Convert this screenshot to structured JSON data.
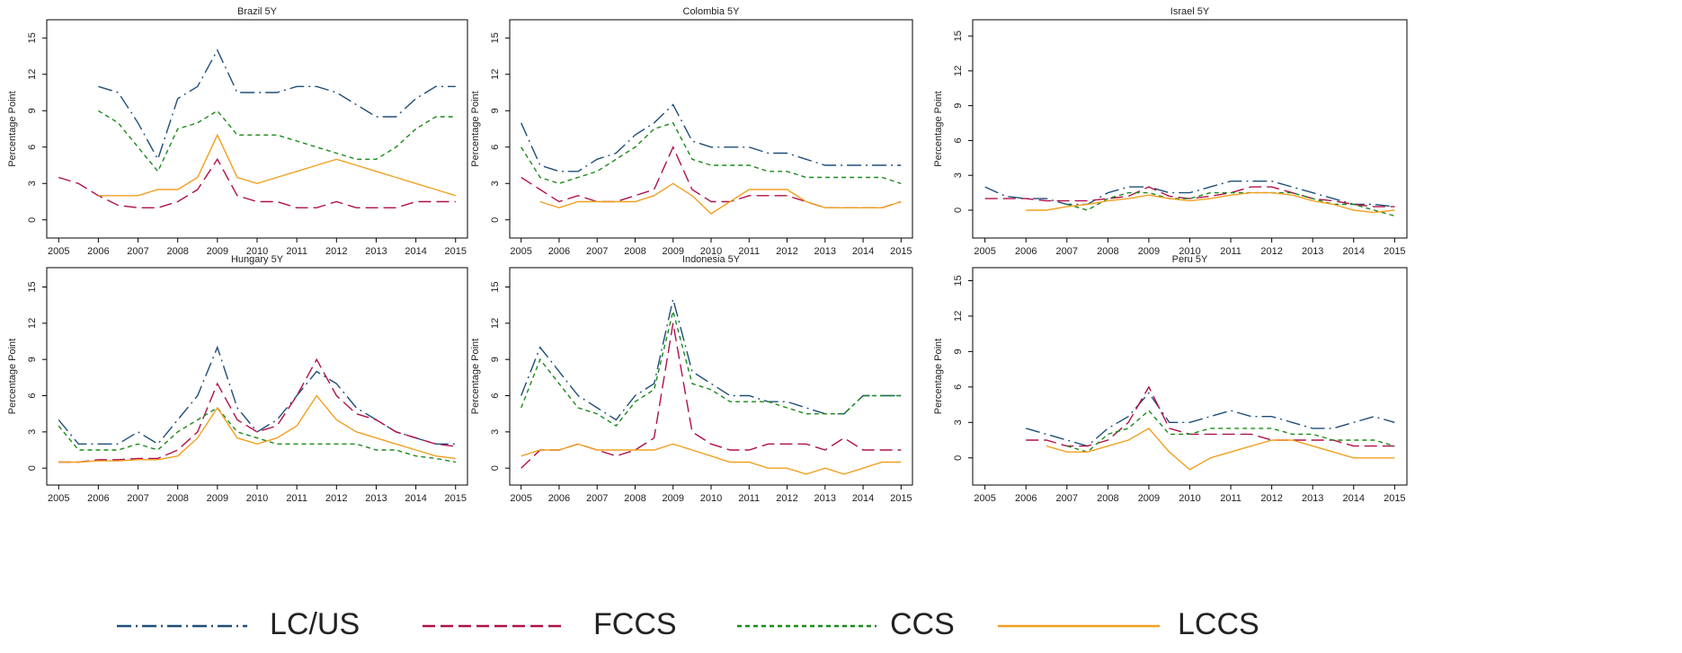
{
  "chart_data": [
    {
      "type": "line",
      "title": "Brazil 5Y",
      "ylabel": "Percentage Point",
      "xlim": [
        2004.7,
        2015.3
      ],
      "ylim": [
        -1.5,
        16.5
      ],
      "xticks": [
        2005,
        2006,
        2007,
        2008,
        2009,
        2010,
        2011,
        2012,
        2013,
        2014,
        2015
      ],
      "yticks": [
        0,
        3,
        6,
        9,
        12,
        15
      ],
      "x": [
        2005,
        2005.5,
        2006,
        2006.5,
        2007,
        2007.5,
        2008,
        2008.5,
        2009,
        2009.5,
        2010,
        2010.5,
        2011,
        2011.5,
        2012,
        2012.5,
        2013,
        2013.5,
        2014,
        2014.5,
        2015
      ],
      "series": [
        {
          "name": "LC/US",
          "color": "#1f4e79",
          "dash": "dashdot",
          "values": [
            null,
            null,
            11,
            10.5,
            8,
            5,
            10,
            11,
            14,
            10.5,
            10.5,
            10.5,
            11,
            11,
            10.5,
            9.5,
            8.5,
            8.5,
            10,
            11,
            11
          ]
        },
        {
          "name": "FCCS",
          "color": "#b0104a",
          "dash": "longdash",
          "values": [
            3.5,
            3,
            2,
            1.2,
            1,
            1,
            1.5,
            2.5,
            5,
            2,
            1.5,
            1.5,
            1,
            1,
            1.5,
            1,
            1,
            1,
            1.5,
            1.5,
            1.5
          ]
        },
        {
          "name": "CCS",
          "color": "#1a8a1a",
          "dash": "dashed",
          "values": [
            null,
            null,
            9,
            8,
            6,
            4,
            7.5,
            8,
            9,
            7,
            7,
            7,
            6.5,
            6,
            5.5,
            5,
            5,
            6,
            7.5,
            8.5,
            8.5
          ]
        },
        {
          "name": "LCCS",
          "color": "#f0a020",
          "dash": "solid",
          "values": [
            null,
            null,
            2,
            2,
            2,
            2.5,
            2.5,
            3.5,
            7,
            3.5,
            3,
            3.5,
            4,
            4.5,
            5,
            4.5,
            4,
            3.5,
            3,
            2.5,
            2
          ]
        }
      ]
    },
    {
      "type": "line",
      "title": "Colombia 5Y",
      "ylabel": "Percentage Point",
      "xlim": [
        2004.7,
        2015.3
      ],
      "ylim": [
        -1.5,
        16.5
      ],
      "xticks": [
        2005,
        2006,
        2007,
        2008,
        2009,
        2010,
        2011,
        2012,
        2013,
        2014,
        2015
      ],
      "yticks": [
        0,
        3,
        6,
        9,
        12,
        15
      ],
      "x": [
        2005,
        2005.5,
        2006,
        2006.5,
        2007,
        2007.5,
        2008,
        2008.5,
        2009,
        2009.5,
        2010,
        2010.5,
        2011,
        2011.5,
        2012,
        2012.5,
        2013,
        2013.5,
        2014,
        2014.5,
        2015
      ],
      "series": [
        {
          "color": "#1f4e79",
          "dash": "dashdot",
          "values": [
            8,
            4.5,
            4,
            4,
            5,
            5.5,
            7,
            8,
            9.5,
            6.5,
            6,
            6,
            6,
            5.5,
            5.5,
            5,
            4.5,
            4.5,
            4.5,
            4.5,
            4.5
          ]
        },
        {
          "color": "#b0104a",
          "dash": "longdash",
          "values": [
            3.5,
            2.5,
            1.5,
            2,
            1.5,
            1.5,
            2,
            2.5,
            6,
            2.5,
            1.5,
            1.5,
            2,
            2,
            2,
            1.5,
            1,
            1,
            1,
            1,
            1.5
          ]
        },
        {
          "color": "#1a8a1a",
          "dash": "dashed",
          "values": [
            6,
            3.5,
            3,
            3.5,
            4,
            5,
            6,
            7.5,
            8,
            5,
            4.5,
            4.5,
            4.5,
            4,
            4,
            3.5,
            3.5,
            3.5,
            3.5,
            3.5,
            3
          ]
        },
        {
          "color": "#f0a020",
          "dash": "solid",
          "values": [
            null,
            1.5,
            1,
            1.5,
            1.5,
            1.5,
            1.5,
            2,
            3,
            2,
            0.5,
            1.5,
            2.5,
            2.5,
            2.5,
            1.5,
            1,
            1,
            1,
            1,
            1.5
          ]
        }
      ]
    },
    {
      "type": "line",
      "title": "Israel 5Y",
      "ylabel": "Percentage Point",
      "xlim": [
        2004.7,
        2015.3
      ],
      "ylim": [
        -2.4,
        16.4
      ],
      "xticks": [
        2005,
        2006,
        2007,
        2008,
        2009,
        2010,
        2011,
        2012,
        2013,
        2014,
        2015
      ],
      "yticks": [
        0,
        3,
        6,
        9,
        12,
        15
      ],
      "x": [
        2005,
        2005.5,
        2006,
        2006.5,
        2007,
        2007.5,
        2008,
        2008.5,
        2009,
        2009.5,
        2010,
        2010.5,
        2011,
        2011.5,
        2012,
        2012.5,
        2013,
        2013.5,
        2014,
        2014.5,
        2015
      ],
      "series": [
        {
          "color": "#1f4e79",
          "dash": "dashdot",
          "values": [
            2,
            1.2,
            1,
            1,
            0.5,
            0.5,
            1.5,
            2,
            2,
            1.5,
            1.5,
            2,
            2.5,
            2.5,
            2.5,
            2,
            1.5,
            1,
            0.5,
            0.5,
            0.3
          ]
        },
        {
          "color": "#b0104a",
          "dash": "longdash",
          "values": [
            1,
            1,
            1,
            0.8,
            0.8,
            0.8,
            1,
            1.2,
            2,
            1.2,
            1,
            1.2,
            1.5,
            2,
            2,
            1.5,
            1,
            0.8,
            0.5,
            0.3,
            0.3
          ]
        },
        {
          "color": "#1a8a1a",
          "dash": "dashed",
          "values": [
            null,
            null,
            null,
            null,
            0.5,
            0,
            1,
            1.5,
            1.5,
            1,
            1,
            1.5,
            1.5,
            1.5,
            1.5,
            1.5,
            1,
            0.5,
            0.5,
            0,
            -0.5
          ]
        },
        {
          "color": "#f0a020",
          "dash": "solid",
          "values": [
            null,
            null,
            0,
            0,
            0.3,
            0.5,
            0.8,
            1,
            1.3,
            1,
            0.8,
            1,
            1.3,
            1.5,
            1.5,
            1.3,
            0.8,
            0.5,
            0,
            -0.2,
            0
          ]
        }
      ]
    },
    {
      "type": "line",
      "title": "Hungary 5Y",
      "ylabel": "Percentage Point",
      "xlim": [
        2004.7,
        2015.3
      ],
      "ylim": [
        -1.4,
        16.6
      ],
      "xticks": [
        2005,
        2006,
        2007,
        2008,
        2009,
        2010,
        2011,
        2012,
        2013,
        2014,
        2015
      ],
      "yticks": [
        0,
        3,
        6,
        9,
        12,
        15
      ],
      "x": [
        2005,
        2005.5,
        2006,
        2006.5,
        2007,
        2007.5,
        2008,
        2008.5,
        2009,
        2009.5,
        2010,
        2010.5,
        2011,
        2011.5,
        2012,
        2012.5,
        2013,
        2013.5,
        2014,
        2014.5,
        2015
      ],
      "series": [
        {
          "color": "#1f4e79",
          "dash": "dashdot",
          "values": [
            4,
            2,
            2,
            2,
            3,
            2,
            4,
            6,
            10,
            5,
            3,
            4,
            6,
            8,
            7,
            5,
            4,
            3,
            2.5,
            2,
            2
          ]
        },
        {
          "color": "#b0104a",
          "dash": "longdash",
          "values": [
            0.5,
            0.5,
            0.7,
            0.7,
            0.8,
            0.8,
            1.5,
            3,
            7,
            4,
            3,
            3.5,
            6,
            9,
            6,
            4.5,
            4,
            3,
            2.5,
            2,
            1.8
          ]
        },
        {
          "color": "#1a8a1a",
          "dash": "dashed",
          "values": [
            3.5,
            1.5,
            1.5,
            1.5,
            2,
            1.5,
            3,
            4,
            5,
            3,
            2.5,
            2,
            2,
            2,
            2,
            2,
            1.5,
            1.5,
            1,
            0.8,
            0.5
          ]
        },
        {
          "color": "#f0a020",
          "dash": "solid",
          "values": [
            0.5,
            0.5,
            0.6,
            0.6,
            0.7,
            0.7,
            1,
            2.5,
            5,
            2.5,
            2,
            2.5,
            3.5,
            6,
            4,
            3,
            2.5,
            2,
            1.5,
            1,
            0.8
          ]
        }
      ]
    },
    {
      "type": "line",
      "title": "Indonesia 5Y",
      "ylabel": "Percentage Point",
      "xlim": [
        2004.7,
        2015.3
      ],
      "ylim": [
        -1.4,
        16.6
      ],
      "xticks": [
        2005,
        2006,
        2007,
        2008,
        2009,
        2010,
        2011,
        2012,
        2013,
        2014,
        2015
      ],
      "yticks": [
        0,
        3,
        6,
        9,
        12,
        15
      ],
      "x": [
        2005,
        2005.5,
        2006,
        2006.5,
        2007,
        2007.5,
        2008,
        2008.5,
        2009,
        2009.5,
        2010,
        2010.5,
        2011,
        2011.5,
        2012,
        2012.5,
        2013,
        2013.5,
        2014,
        2014.5,
        2015
      ],
      "series": [
        {
          "color": "#1f4e79",
          "dash": "dashdot",
          "values": [
            6,
            10,
            8,
            6,
            5,
            4,
            6,
            7,
            14,
            8,
            7,
            6,
            6,
            5.5,
            5.5,
            5,
            4.5,
            4.5,
            6,
            6,
            6
          ]
        },
        {
          "color": "#b0104a",
          "dash": "longdash",
          "values": [
            0,
            1.5,
            1.5,
            2,
            1.5,
            1,
            1.5,
            2.5,
            12,
            3,
            2,
            1.5,
            1.5,
            2,
            2,
            2,
            1.5,
            2.5,
            1.5,
            1.5,
            1.5
          ]
        },
        {
          "color": "#1a8a1a",
          "dash": "dashed",
          "values": [
            5,
            9,
            7,
            5,
            4.5,
            3.5,
            5.5,
            6.5,
            13,
            7,
            6.5,
            5.5,
            5.5,
            5.5,
            5,
            4.5,
            4.5,
            4.5,
            6,
            6,
            6
          ]
        },
        {
          "color": "#f0a020",
          "dash": "solid",
          "values": [
            1,
            1.5,
            1.5,
            2,
            1.5,
            1.5,
            1.5,
            1.5,
            2,
            1.5,
            1,
            0.5,
            0.5,
            0,
            0,
            -0.5,
            0,
            -0.5,
            0,
            0.5,
            0.5
          ]
        }
      ]
    },
    {
      "type": "line",
      "title": "Peru 5Y",
      "ylabel": "Percentage Point",
      "xlim": [
        2004.7,
        2015.3
      ],
      "ylim": [
        -2.3,
        16.1
      ],
      "xticks": [
        2005,
        2006,
        2007,
        2008,
        2009,
        2010,
        2011,
        2012,
        2013,
        2014,
        2015
      ],
      "yticks": [
        0,
        3,
        6,
        9,
        12,
        15
      ],
      "x": [
        2005,
        2005.5,
        2006,
        2006.5,
        2007,
        2007.5,
        2008,
        2008.5,
        2009,
        2009.5,
        2010,
        2010.5,
        2011,
        2011.5,
        2012,
        2012.5,
        2013,
        2013.5,
        2014,
        2014.5,
        2015
      ],
      "series": [
        {
          "color": "#1f4e79",
          "dash": "dashdot",
          "values": [
            null,
            null,
            2.5,
            2,
            1.5,
            1,
            2.5,
            3.5,
            5.5,
            3,
            3,
            3.5,
            4,
            3.5,
            3.5,
            3,
            2.5,
            2.5,
            3,
            3.5,
            3
          ]
        },
        {
          "color": "#b0104a",
          "dash": "longdash",
          "values": [
            null,
            null,
            1.5,
            1.5,
            1,
            1,
            1.5,
            3,
            6,
            2.5,
            2,
            2,
            2,
            2,
            1.5,
            1.5,
            1.5,
            1.5,
            1,
            1,
            1
          ]
        },
        {
          "color": "#1a8a1a",
          "dash": "dashed",
          "values": [
            null,
            null,
            null,
            null,
            1,
            0.5,
            2,
            2.5,
            4,
            2,
            2,
            2.5,
            2.5,
            2.5,
            2.5,
            2,
            2,
            1.5,
            1.5,
            1.5,
            1
          ]
        },
        {
          "color": "#f0a020",
          "dash": "solid",
          "values": [
            null,
            null,
            null,
            1,
            0.5,
            0.5,
            1,
            1.5,
            2.5,
            0.5,
            -1,
            0,
            0.5,
            1,
            1.5,
            1.5,
            1,
            0.5,
            0,
            0,
            0
          ]
        }
      ]
    }
  ]
}
